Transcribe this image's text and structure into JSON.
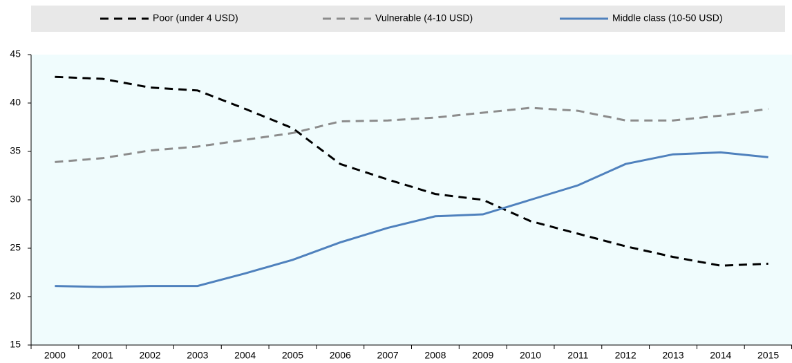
{
  "chart_data": {
    "type": "line",
    "categories": [
      "2000",
      "2001",
      "2002",
      "2003",
      "2004",
      "2005",
      "2006",
      "2007",
      "2008",
      "2009",
      "2010",
      "2011",
      "2012",
      "2013",
      "2014",
      "2015"
    ],
    "series": [
      {
        "name": "Poor (under 4 USD)",
        "color": "#000000",
        "dashed": true,
        "values": [
          42.7,
          42.5,
          41.6,
          41.3,
          39.4,
          37.4,
          33.7,
          32.1,
          30.6,
          30.0,
          27.8,
          26.5,
          25.2,
          24.1,
          23.2,
          23.4
        ]
      },
      {
        "name": "Vulnerable (4-10 USD)",
        "color": "#8c8c8c",
        "dashed": true,
        "values": [
          33.9,
          34.3,
          35.1,
          35.5,
          36.2,
          36.9,
          38.1,
          38.2,
          38.5,
          39.0,
          39.5,
          39.2,
          38.2,
          38.2,
          38.7,
          39.4
        ]
      },
      {
        "name": "Middle class (10-50 USD)",
        "color": "#4f81bd",
        "dashed": false,
        "values": [
          21.1,
          21.0,
          21.1,
          21.1,
          22.4,
          23.8,
          25.6,
          27.1,
          28.3,
          28.5,
          30.0,
          31.5,
          33.7,
          34.7,
          34.9,
          34.4
        ]
      }
    ],
    "ylim": [
      15,
      45
    ],
    "yticks": [
      15,
      20,
      25,
      30,
      35,
      40,
      45
    ],
    "grid": false,
    "legend": "top"
  }
}
